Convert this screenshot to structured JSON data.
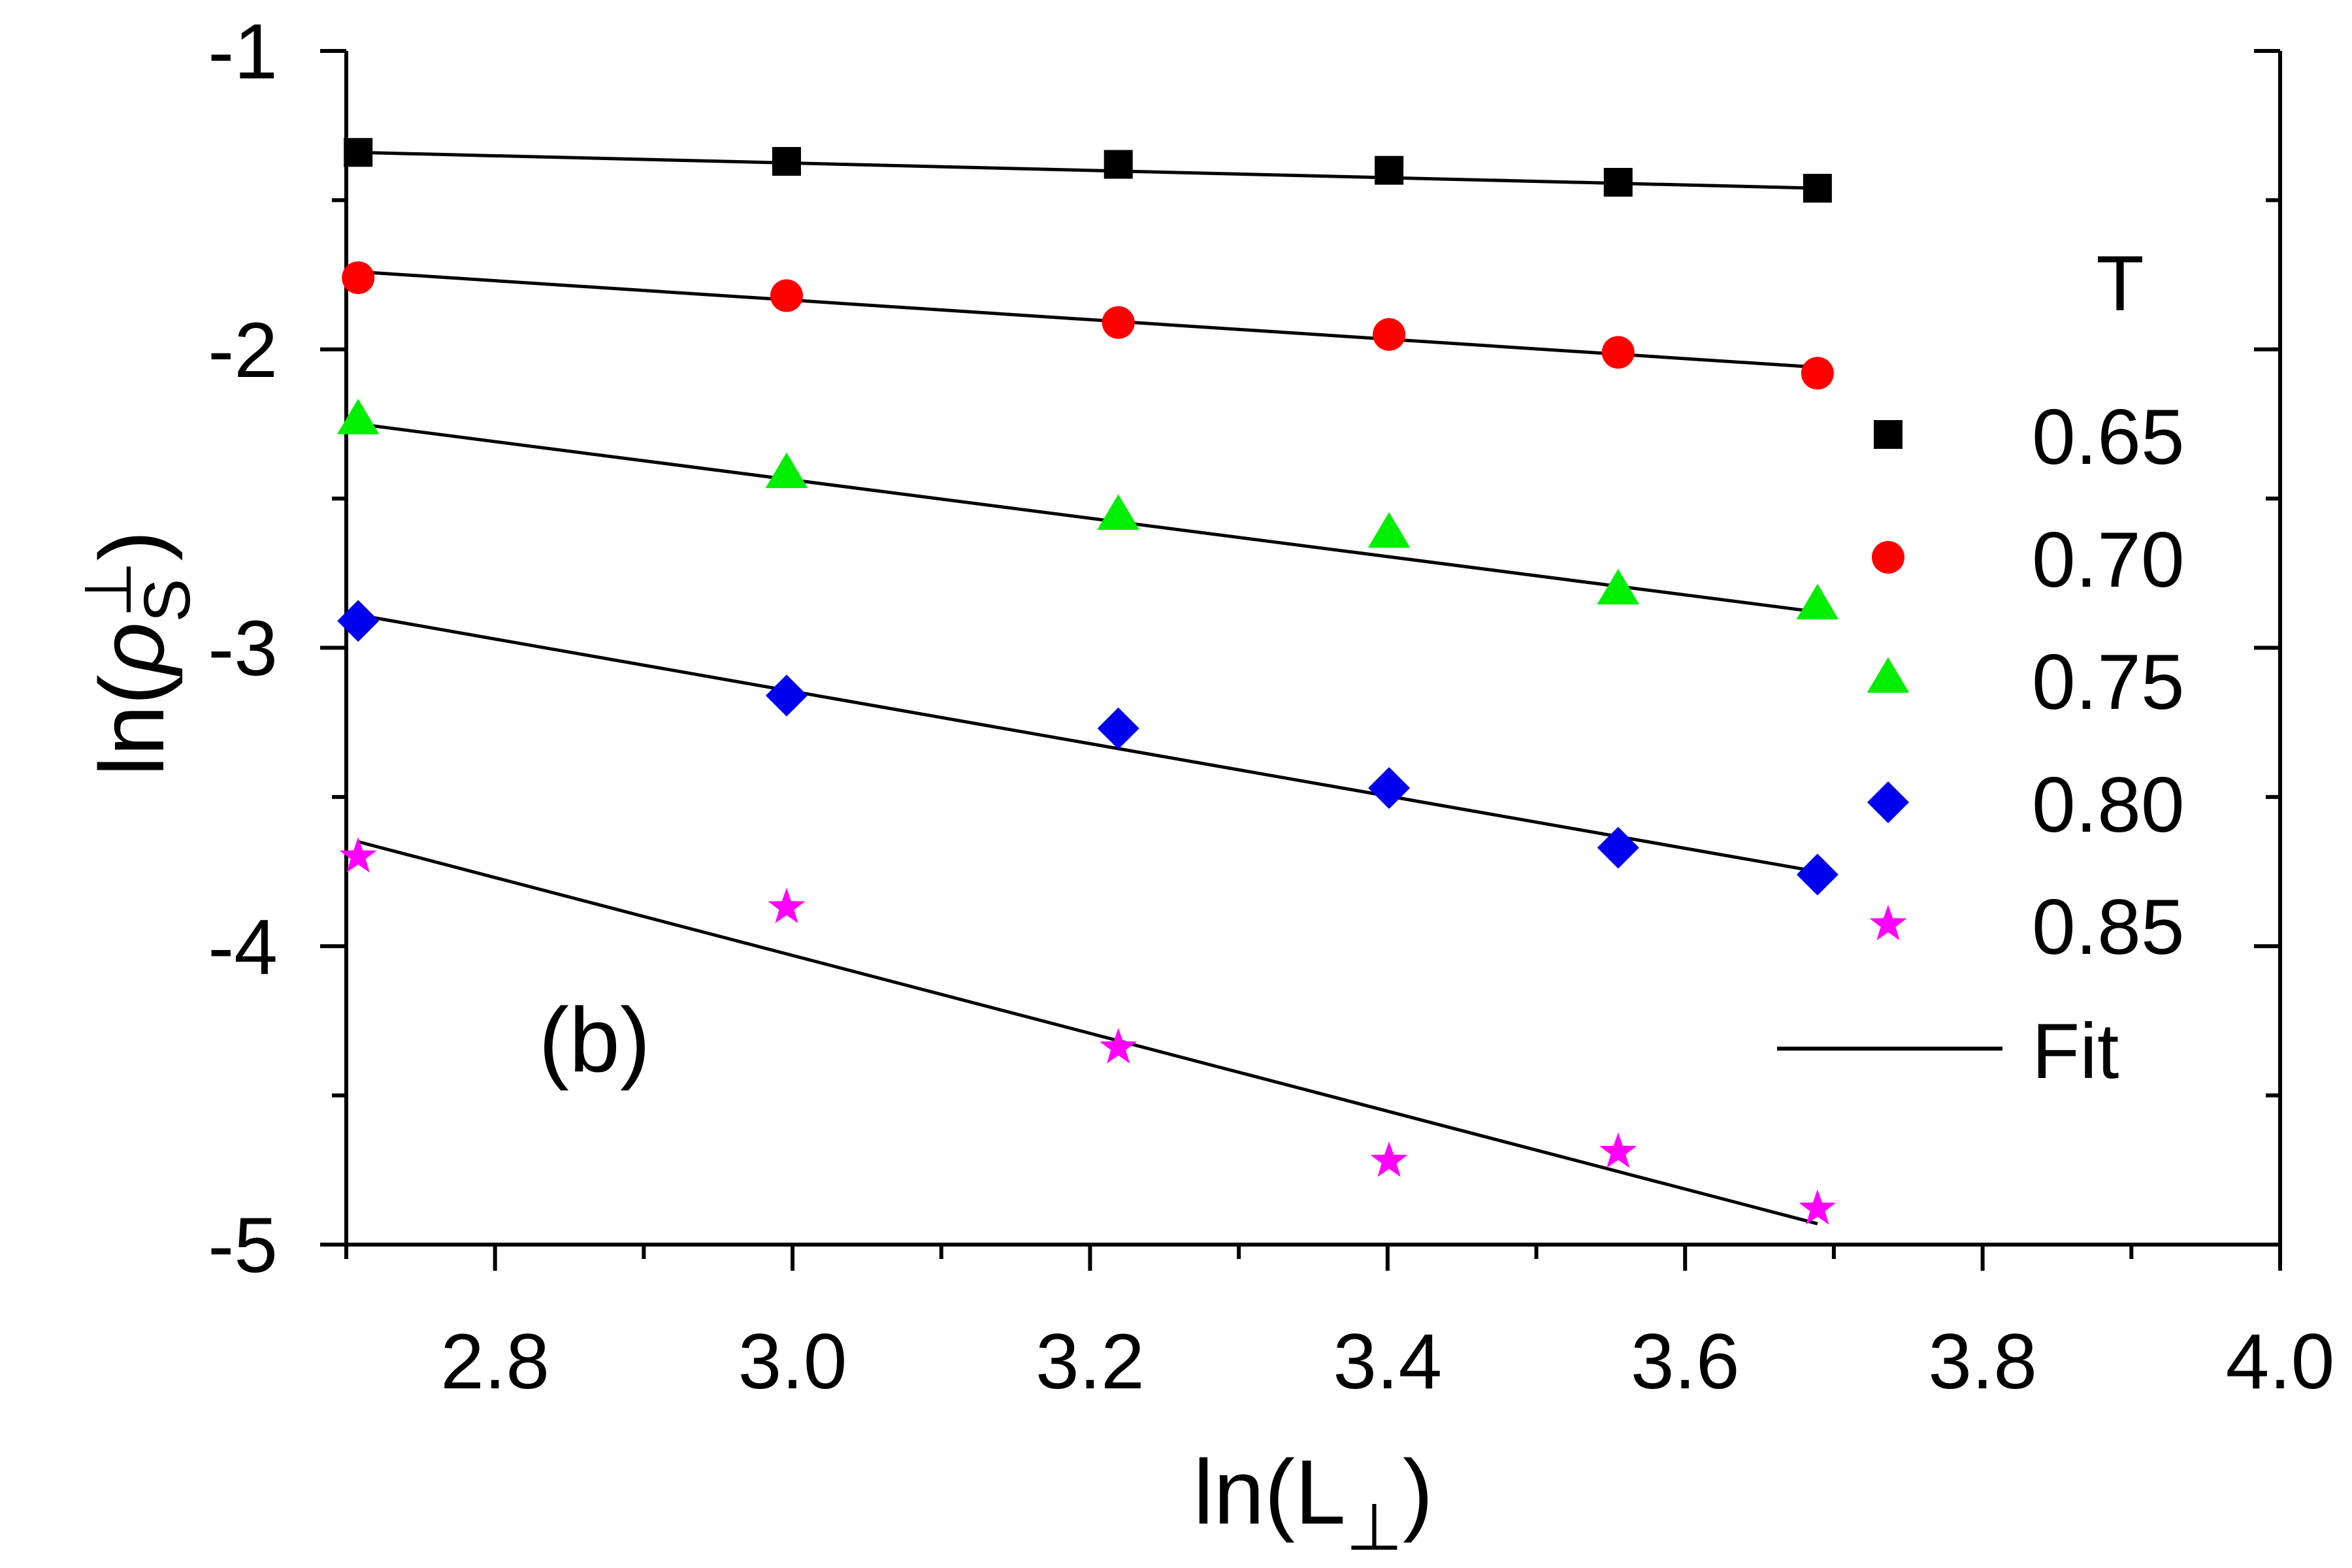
{
  "chart_data": {
    "type": "scatter",
    "title": "",
    "xlabel": "ln(L⊥)",
    "ylabel": "ln(ρs⊥)",
    "xlim": [
      2.7,
      4.0
    ],
    "ylim": [
      -5,
      -1
    ],
    "xticks": [
      "2.8",
      "3.0",
      "3.2",
      "3.4",
      "3.6",
      "3.8",
      "4.0"
    ],
    "xtick_values": [
      2.8,
      3.0,
      3.2,
      3.4,
      3.6,
      3.8,
      4.0
    ],
    "yticks": [
      "-1",
      "-2",
      "-3",
      "-4",
      "-5"
    ],
    "ytick_values": [
      -1,
      -2,
      -3,
      -4,
      -5
    ],
    "x": [
      2.708,
      2.996,
      3.219,
      3.401,
      3.555,
      3.689
    ],
    "annotation": "(b)",
    "legend_title": "T",
    "legend_position": "right",
    "fit_label": "Fit",
    "series": [
      {
        "name": "0.65",
        "marker": "square",
        "color": "#000000",
        "values": [
          -1.34,
          -1.37,
          -1.38,
          -1.4,
          -1.44,
          -1.46
        ],
        "fit": [
          -1.34,
          -1.46
        ]
      },
      {
        "name": "0.70",
        "marker": "circle",
        "color": "#ff0000",
        "values": [
          -1.76,
          -1.82,
          -1.91,
          -1.95,
          -2.01,
          -2.08
        ],
        "fit": [
          -1.74,
          -2.06
        ]
      },
      {
        "name": "0.75",
        "marker": "triangle",
        "color": "#00ee00",
        "values": [
          -2.24,
          -2.42,
          -2.56,
          -2.62,
          -2.81,
          -2.86
        ],
        "fit": [
          -2.25,
          -2.88
        ]
      },
      {
        "name": "0.80",
        "marker": "diamond",
        "color": "#0000ee",
        "values": [
          -2.91,
          -3.16,
          -3.27,
          -3.47,
          -3.67,
          -3.76
        ],
        "fit": [
          -2.89,
          -3.75
        ]
      },
      {
        "name": "0.85",
        "marker": "star",
        "color": "#ff00ff",
        "values": [
          -3.7,
          -3.87,
          -4.34,
          -4.72,
          -4.69,
          -4.88
        ],
        "fit": [
          -3.65,
          -4.93
        ]
      }
    ]
  }
}
